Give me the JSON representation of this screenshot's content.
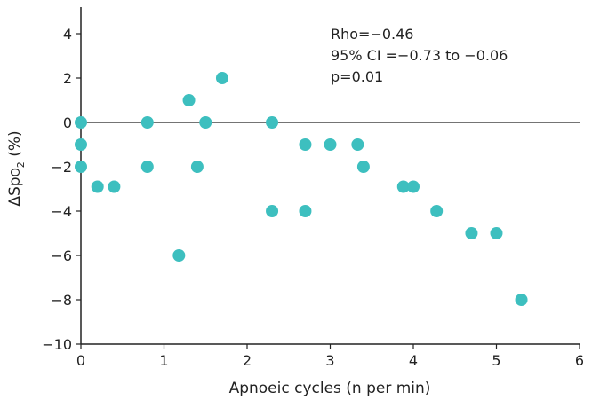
{
  "chart_data": {
    "type": "scatter",
    "xlabel": "Apnoeic cycles (n per min)",
    "ylabel": "ΔSpO2 (%)",
    "ylabel_main": "ΔSp",
    "ylabel_sub": "O",
    "ylabel_subscript": "2",
    "ylabel_unit": " (%)",
    "xlim": [
      0,
      6
    ],
    "ylim": [
      -10,
      5
    ],
    "x_ticks": [
      0,
      1,
      2,
      3,
      4,
      5,
      6
    ],
    "y_ticks": [
      -10,
      -8,
      -6,
      -4,
      -2,
      0,
      2,
      4
    ],
    "y_tick_labels": [
      "−10",
      "−8",
      "−6",
      "−4",
      "−2",
      "0",
      "2",
      "4"
    ],
    "x_tick_labels": [
      "0",
      "1",
      "2",
      "3",
      "4",
      "5",
      "6"
    ],
    "reference_line_y": 0,
    "grid": false,
    "marker_color": "#3dbfbf",
    "annotations": [
      "Rho=−0.46",
      "95% CI =−0.73 to −0.06",
      "p=0.01"
    ],
    "points": [
      {
        "x": 0.0,
        "y": 0
      },
      {
        "x": 0.0,
        "y": -1
      },
      {
        "x": 0.0,
        "y": -2
      },
      {
        "x": 0.2,
        "y": -2.9
      },
      {
        "x": 0.4,
        "y": -2.9
      },
      {
        "x": 0.8,
        "y": 0
      },
      {
        "x": 0.8,
        "y": -2
      },
      {
        "x": 1.18,
        "y": -6
      },
      {
        "x": 1.3,
        "y": 1
      },
      {
        "x": 1.4,
        "y": -2
      },
      {
        "x": 1.5,
        "y": 0
      },
      {
        "x": 1.7,
        "y": 2
      },
      {
        "x": 2.3,
        "y": 0
      },
      {
        "x": 2.3,
        "y": -4
      },
      {
        "x": 2.7,
        "y": -1
      },
      {
        "x": 2.7,
        "y": -4
      },
      {
        "x": 3.0,
        "y": -1
      },
      {
        "x": 3.33,
        "y": -1
      },
      {
        "x": 3.4,
        "y": -2
      },
      {
        "x": 3.88,
        "y": -2.9
      },
      {
        "x": 4.0,
        "y": -2.9
      },
      {
        "x": 4.28,
        "y": -4
      },
      {
        "x": 4.7,
        "y": -5
      },
      {
        "x": 5.0,
        "y": -5
      },
      {
        "x": 5.3,
        "y": -8
      }
    ]
  }
}
